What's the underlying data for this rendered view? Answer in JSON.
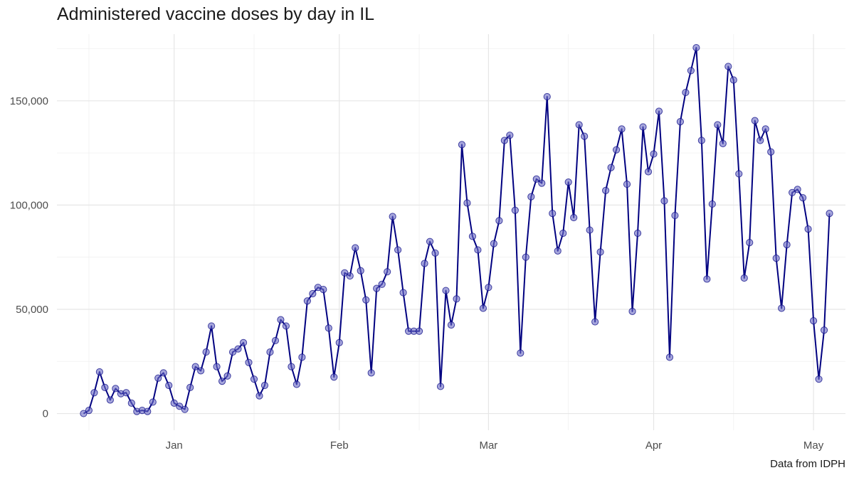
{
  "chart_data": {
    "type": "line",
    "title": "Administered vaccine doses by day in IL",
    "caption": "Data from IDPH",
    "xlabel": "",
    "ylabel": "",
    "x_start": "2020-12-15",
    "xlim": [
      "2020-12-10",
      "2021-05-07"
    ],
    "ylim": [
      -8000,
      182000
    ],
    "x_ticks": [
      {
        "date": "2021-01-01",
        "label": "Jan"
      },
      {
        "date": "2021-02-01",
        "label": "Feb"
      },
      {
        "date": "2021-03-01",
        "label": "Mar"
      },
      {
        "date": "2021-04-01",
        "label": "Apr"
      },
      {
        "date": "2021-05-01",
        "label": "May"
      }
    ],
    "x_minor_ticks": [
      "2020-12-16",
      "2021-01-16",
      "2021-02-16",
      "2021-03-16",
      "2021-04-16"
    ],
    "y_ticks": [
      {
        "value": 0,
        "label": "0"
      },
      {
        "value": 50000,
        "label": "50,000"
      },
      {
        "value": 100000,
        "label": "100,000"
      },
      {
        "value": 150000,
        "label": "150,000"
      }
    ],
    "y_minor_ticks": [
      25000,
      75000,
      125000,
      175000
    ],
    "grid": true,
    "series": [
      {
        "values": [
          0,
          1500,
          10000,
          20000,
          12500,
          6500,
          12000,
          9500,
          10000,
          5000,
          1000,
          1500,
          1000,
          5500,
          17000,
          19500,
          13500,
          5000,
          3500,
          2000,
          12500,
          22500,
          20500,
          29500,
          42000,
          22500,
          15500,
          18000,
          29500,
          31000,
          34000,
          24500,
          16500,
          8500,
          13500,
          29500,
          35000,
          45000,
          42000,
          22500,
          14000,
          27000,
          54000,
          57500,
          60500,
          59500,
          41000,
          17500,
          34000,
          67500,
          66000,
          79500,
          68500,
          54500,
          19500,
          60000,
          62000,
          68000,
          94500,
          78500,
          58000,
          39500,
          39500,
          39500,
          72000,
          82500,
          77000,
          13000,
          59000,
          42500,
          55000,
          129000,
          101000,
          85000,
          78500,
          50500,
          60500,
          81500,
          92500,
          131000,
          133500,
          97500,
          29000,
          75000,
          104000,
          112500,
          110500,
          152000,
          96000,
          78000,
          86500,
          111000,
          94000,
          138500,
          133000,
          88000,
          44000,
          77500,
          107000,
          118000,
          126500,
          136500,
          110000,
          49000,
          86500,
          137500,
          116000,
          124500,
          145000,
          102000,
          27000,
          95000,
          140000,
          154000,
          164500,
          175500,
          131000,
          64500,
          100500,
          138500,
          129500,
          166500,
          160000,
          115000,
          65000,
          82000,
          140500,
          131000,
          136500,
          125500,
          74500,
          50500,
          81000,
          106000,
          107500,
          103500,
          88500,
          44500,
          16500,
          40000,
          96000
        ]
      }
    ]
  }
}
